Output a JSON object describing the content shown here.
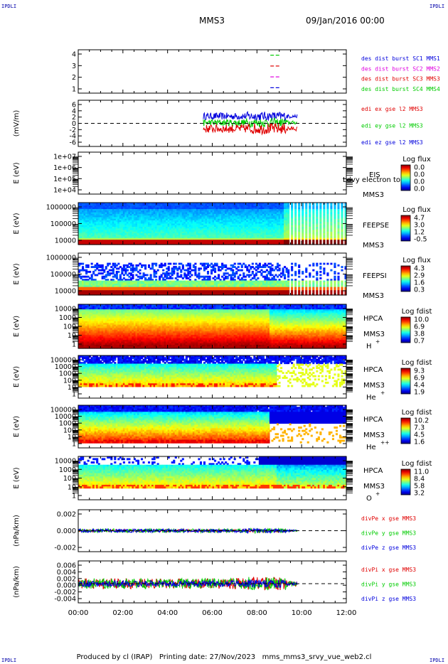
{
  "corner_label": "IPDLI",
  "header": {
    "spacecraft": "MMS3",
    "date_time": "09/Jan/2016 00:00"
  },
  "footer": {
    "produced_by": "Produced by cl (IRAP)",
    "printing_date": "Printing date: 27/Nov/2023",
    "filename": "mms_mms3_srvy_vue_web2.cl"
  },
  "colors": {
    "red": "#e00000",
    "green": "#00cc00",
    "blue": "#0000dd",
    "magenta": "#e000e0",
    "navy": "#0000aa"
  },
  "chart_data": {
    "type": "multi-panel time series",
    "x_tick_labels": [
      "00:00",
      "02:00",
      "04:00",
      "06:00",
      "08:00",
      "10:00",
      "12:00"
    ],
    "x_range_hours": [
      0,
      12
    ],
    "panels": [
      {
        "id": "burst",
        "type": "line",
        "y_ticks": [
          "4",
          "3",
          "2",
          "1"
        ],
        "y_range": [
          0.5,
          4.5
        ],
        "legend": [
          {
            "text": "des dist burst SC1 MMS1",
            "color": "#0000dd"
          },
          {
            "text": "des dist burst SC2 MMS2",
            "color": "#e000e0"
          },
          {
            "text": "des dist burst SC3 MMS3",
            "color": "#e00000"
          },
          {
            "text": "des dist burst SC4 MMS4",
            "color": "#00cc00"
          }
        ],
        "series": [
          {
            "color": "#00cc00",
            "y": 4,
            "x_start": 8.6,
            "x_end": 9.0
          },
          {
            "color": "#e00000",
            "y": 3,
            "x_start": 8.6,
            "x_end": 9.0
          },
          {
            "color": "#e000e0",
            "y": 2,
            "x_start": 8.6,
            "x_end": 9.0
          },
          {
            "color": "#0000dd",
            "y": 1,
            "x_start": 8.6,
            "x_end": 9.0
          }
        ]
      },
      {
        "id": "edi",
        "type": "line",
        "ylabel": "(mV/m)",
        "y_ticks": [
          "6",
          "4",
          "2",
          "0",
          "-2",
          "-4",
          "-6"
        ],
        "y_range": [
          -6.5,
          6.5
        ],
        "legend": [
          {
            "text": "edi ex gse l2 MMS3",
            "color": "#e00000"
          },
          {
            "text": "edi ey gse l2 MMS3",
            "color": "#00cc00"
          },
          {
            "text": "edi ez gse l2 MMS3",
            "color": "#0000dd"
          }
        ],
        "series": [
          {
            "name": "edi ez gse l2 MMS3",
            "color": "#0000dd",
            "x_start": 5.6,
            "x_end": 9.8,
            "mean": 2.0,
            "spread": 1.0
          },
          {
            "name": "edi ey gse l2 MMS3",
            "color": "#00cc00",
            "x_start": 5.6,
            "x_end": 9.8,
            "mean": 0.2,
            "spread": 1.0
          },
          {
            "name": "edi ex gse l2 MMS3",
            "color": "#e00000",
            "x_start": 5.6,
            "x_end": 9.8,
            "mean": -1.5,
            "spread": 1.2
          }
        ]
      },
      {
        "id": "eis",
        "type": "heatmap",
        "ylabel": "E (eV)",
        "y_ticks": [
          "1e+07",
          "1e+06",
          "1e+05",
          "1e+04"
        ],
        "instrument": "EIS",
        "overlap_text": "Ldvy electron to",
        "spacecraft": "MMS3",
        "colorbar_title": "Log flux",
        "colorbar_ticks": [
          "0.0",
          "0.0",
          "0.0",
          "0.0"
        ]
      },
      {
        "id": "feepse",
        "type": "heatmap",
        "ylabel": "E (eV)",
        "y_ticks": [
          "1000000",
          "100000",
          "10000"
        ],
        "instrument": "FEEPSE",
        "spacecraft": "MMS3",
        "colorbar_title": "Log flux",
        "colorbar_ticks": [
          "4.7",
          "3.0",
          "1.2",
          "-0.5"
        ]
      },
      {
        "id": "feepsi",
        "type": "heatmap",
        "ylabel": "E (eV)",
        "y_ticks": [
          "1000000",
          "100000",
          "10000"
        ],
        "instrument": "FEEPSI",
        "spacecraft": "MMS3",
        "colorbar_title": "Log flux",
        "colorbar_ticks": [
          "4.3",
          "2.9",
          "1.6",
          "0.3"
        ]
      },
      {
        "id": "hpca-h",
        "type": "heatmap",
        "ylabel": "E (eV)",
        "y_ticks": [
          "10000",
          "1000",
          "100",
          "10",
          "1"
        ],
        "instrument": "HPCA",
        "spacecraft": "MMS3",
        "species": "H",
        "charge": "+",
        "colorbar_title": "Log fdist",
        "colorbar_ticks": [
          "10.0",
          "6.9",
          "3.8",
          "0.7"
        ]
      },
      {
        "id": "hpca-he",
        "type": "heatmap",
        "ylabel": "E (eV)",
        "y_ticks": [
          "100000",
          "10000",
          "1000",
          "100",
          "10",
          "1"
        ],
        "instrument": "HPCA",
        "spacecraft": "MMS3",
        "species": "He",
        "charge": "+",
        "colorbar_title": "Log fdist",
        "colorbar_ticks": [
          "9.3",
          "6.9",
          "4.4",
          "1.9"
        ]
      },
      {
        "id": "hpca-he2",
        "type": "heatmap",
        "ylabel": "E (eV)",
        "y_ticks": [
          "100000",
          "10000",
          "1000",
          "100",
          "10",
          "1"
        ],
        "instrument": "HPCA",
        "spacecraft": "MMS3",
        "species": "He",
        "charge": "++",
        "colorbar_title": "Log fdist",
        "colorbar_ticks": [
          "10.2",
          "7.3",
          "4.5",
          "1.6"
        ]
      },
      {
        "id": "hpca-o",
        "type": "heatmap",
        "ylabel": "E (eV)",
        "y_ticks": [
          "10000",
          "1000",
          "100",
          "10",
          "1"
        ],
        "instrument": "HPCA",
        "spacecraft": "MMS3",
        "species": "O",
        "charge": "+",
        "colorbar_title": "Log fdist",
        "colorbar_ticks": [
          "11.0",
          "8.4",
          "5.8",
          "3.2"
        ]
      },
      {
        "id": "divpe",
        "type": "line",
        "ylabel": "(nPa/km)",
        "y_ticks": [
          "0.002",
          "0.000",
          "-0.002"
        ],
        "y_range": [
          -0.0035,
          0.0035
        ],
        "legend": [
          {
            "text": "divPe x gse MMS3",
            "color": "#e00000"
          },
          {
            "text": "divPe y gse MMS3",
            "color": "#00cc00"
          },
          {
            "text": "divPe z gse MMS3",
            "color": "#0000dd"
          }
        ],
        "series": [
          {
            "name": "divPe x gse MMS3",
            "color": "#e00000",
            "x_start": 0,
            "x_end": 9.8,
            "mean": 0,
            "spread": 0.0002
          },
          {
            "name": "divPe y gse MMS3",
            "color": "#00cc00",
            "x_start": 0,
            "x_end": 9.8,
            "mean": 0,
            "spread": 0.0003
          },
          {
            "name": "divPe z gse MMS3",
            "color": "#0000dd",
            "x_start": 0,
            "x_end": 9.8,
            "mean": 0,
            "spread": 0.0003
          }
        ]
      },
      {
        "id": "divpi",
        "type": "line",
        "ylabel": "(nPa/km)",
        "y_ticks": [
          "0.006",
          "0.004",
          "0.002",
          "0.000",
          "-0.002",
          "-0.004"
        ],
        "y_range": [
          -0.0055,
          0.0065
        ],
        "legend": [
          {
            "text": "divPi x gse MMS3",
            "color": "#e00000"
          },
          {
            "text": "divPi y gse MMS3",
            "color": "#00cc00"
          },
          {
            "text": "divPi z gse MMS3",
            "color": "#0000dd"
          }
        ],
        "series": [
          {
            "name": "divPi x gse MMS3",
            "color": "#e00000",
            "x_start": 0,
            "x_end": 9.8,
            "mean": 0,
            "spread": 0.0015
          },
          {
            "name": "divPi y gse MMS3",
            "color": "#00cc00",
            "x_start": 0,
            "x_end": 9.8,
            "mean": 0,
            "spread": 0.0015
          },
          {
            "name": "divPi z gse MMS3",
            "color": "#0000dd",
            "x_start": 0,
            "x_end": 9.8,
            "mean": 0,
            "spread": 0.0009
          }
        ]
      }
    ]
  }
}
